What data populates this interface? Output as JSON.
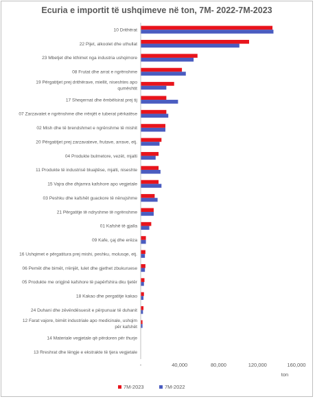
{
  "chart_data": {
    "type": "bar",
    "orientation": "horizontal",
    "title": "Ecuria e importit të ushqimeve në ton, 7M- 2022-7M-2023",
    "xlabel": "ton",
    "ylabel": "",
    "xlim": [
      0,
      160000
    ],
    "x_ticks": [
      0,
      40000,
      80000,
      120000,
      160000
    ],
    "x_tick_labels": [
      "-",
      "40,000",
      "80,000",
      "120,000",
      "160,000"
    ],
    "grid": false,
    "legend_position": "bottom",
    "categories": [
      "10 Drithërat",
      "22 Pijet, alkoolet dhe uthullat",
      "23 Mbetjet dhe kthimet nga industria ushqimore",
      "08 Frutat dhe arrat e ngrënshme",
      "19 Përgatitjet prej drithërave, miellit, niseshtes apo qumështit",
      "17 Sheqernat dhe ëmbëlsirat prej tij",
      "07 Zarzavatet e ngrënshme dhe rrënjët e tuberat përkatëse",
      "02 Mish dhe të brendshmet e ngrënshme të mishit",
      "20 Përgatitjet prej zarzavateve, frutave, arrave, etj.",
      "04 Produkte bulmetore, vezët, mjalti",
      "11 Produkte të industrisë bluajtëse, mjalti, niseshte",
      "15 Vajra dhe dhjamra kafshore apo vegjetale",
      "03 Peshku dhe kafshët guackore të nënujshme",
      "21 Përgatitje të ndryshme të ngrënshme",
      "01 Kafshë të gjalla",
      "09 Kafe, çaj dhe erëza",
      "16 Ushqimet e përgatitura prej mishi, peshku, molusqe, etj.",
      "06 Pemët dhe bimët, rrënjët, lulet dhe gjethet zbukuruese",
      "05 Produkte me origjinë kafshore të papërfshira dku tjetër",
      "18 Kakao dhe pergatitje kakao",
      "24 Duhani dhe zëvëndësuesit e përpunuar të duhanit",
      "12 Farat vajore, bimët industriale apo medicinale, ushqim për kafshët",
      "14 Materiale vegjetale që përdoren për thurje",
      "13 Rreshrat dhe lëngje e ekstrakte të tjera vegjetale"
    ],
    "series": [
      {
        "name": "7M-2023",
        "color": "#e8141c",
        "values": [
          135000,
          111000,
          58000,
          42000,
          34000,
          26000,
          26000,
          25000,
          21000,
          18000,
          18000,
          18000,
          14000,
          13000,
          10500,
          5000,
          4500,
          4500,
          3500,
          3000,
          2500,
          1500,
          0,
          0
        ]
      },
      {
        "name": "7M-2022",
        "color": "#4a5cc0",
        "values": [
          136000,
          101000,
          54000,
          46000,
          26000,
          38000,
          28000,
          25000,
          19000,
          15000,
          20000,
          21000,
          17000,
          13000,
          8500,
          5000,
          4000,
          4000,
          3000,
          2500,
          2000,
          1500,
          0,
          0
        ]
      }
    ]
  }
}
